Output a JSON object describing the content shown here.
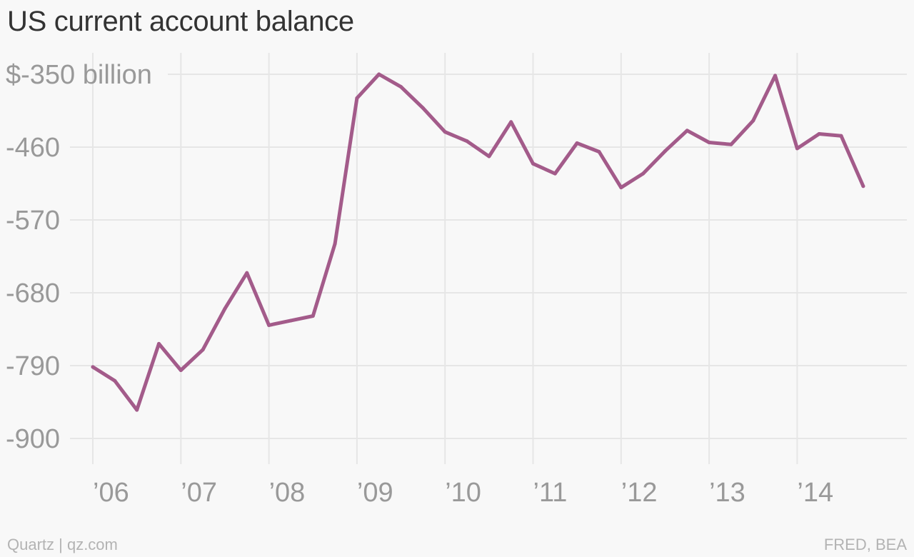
{
  "chart_data": {
    "type": "line",
    "title": "US current account balance",
    "xlabel": "",
    "ylabel": "",
    "ylim": [
      -945,
      -308
    ],
    "xlim": [
      2005.75,
      2015.0
    ],
    "y_ticks": [
      -350,
      -460,
      -570,
      -680,
      -790,
      -900
    ],
    "y_tick_labels": [
      "$-350 billion",
      "-460",
      "-570",
      "-680",
      "-790",
      "-900"
    ],
    "x_ticks": [
      2006,
      2007,
      2008,
      2009,
      2010,
      2011,
      2012,
      2013,
      2014
    ],
    "x_tick_labels": [
      "’06",
      "’07",
      "’08",
      "’09",
      "’10",
      "’11",
      "’12",
      "’13",
      "’14"
    ],
    "grid": true,
    "color": "#a35b8a",
    "series": [
      {
        "x": [
          2006.0,
          2006.25,
          2006.5,
          2006.75,
          2007.0,
          2007.25,
          2007.5,
          2007.75,
          2008.0,
          2008.25,
          2008.5,
          2008.75,
          2009.0,
          2009.25,
          2009.5,
          2009.75,
          2010.0,
          2010.25,
          2010.5,
          2010.75,
          2011.0,
          2011.25,
          2011.5,
          2011.75,
          2012.0,
          2012.25,
          2012.5,
          2012.75,
          2013.0,
          2013.25,
          2013.5,
          2013.75,
          2014.0,
          2014.25,
          2014.5,
          2014.75
        ],
        "values": [
          -792,
          -813,
          -857,
          -757,
          -797,
          -766,
          -704,
          -650,
          -729,
          -722,
          -715,
          -606,
          -386,
          -350,
          -369,
          -401,
          -437,
          -451,
          -474,
          -422,
          -485,
          -500,
          -454,
          -467,
          -521,
          -500,
          -466,
          -435,
          -453,
          -456,
          -420,
          -352,
          -462,
          -440,
          -443,
          -519
        ]
      }
    ]
  },
  "footer": {
    "source_left": "Quartz | qz.com",
    "source_right": "FRED, BEA"
  }
}
